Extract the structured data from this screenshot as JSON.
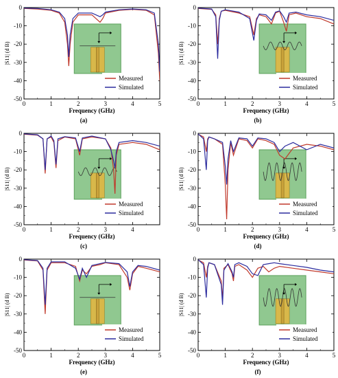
{
  "legend": {
    "measured": "Measured",
    "simulated": "Simulated"
  },
  "colors": {
    "measured": "#c0392b",
    "simulated": "#2b2b9e",
    "inset_bg": "#90c890",
    "inset_border": "#5aa05a",
    "patch": "#d8b84a",
    "feed": "#c9a23a"
  },
  "chart_data": [
    {
      "type": "line",
      "panel": "(a)",
      "xlabel": "Frequency (GHz)",
      "ylabel": "|S11| (d B)",
      "xlim": [
        0,
        5
      ],
      "ylim": [
        -50,
        0
      ],
      "xticks": [
        0,
        1,
        2,
        3,
        4,
        5
      ],
      "yticks": [
        0,
        -10,
        -20,
        -30,
        -40,
        -50
      ],
      "inset": "plain",
      "series": [
        {
          "name": "Measured",
          "x": [
            0,
            0.5,
            1.0,
            1.3,
            1.5,
            1.6,
            1.65,
            1.7,
            1.8,
            2.0,
            2.5,
            2.8,
            2.9,
            3.0,
            3.5,
            4.0,
            4.5,
            4.8,
            4.95,
            5.0
          ],
          "y": [
            -0.5,
            -0.8,
            -1.5,
            -3,
            -8,
            -20,
            -32,
            -20,
            -8,
            -4,
            -4,
            -8,
            -6,
            -3,
            -1.5,
            -1,
            -1.5,
            -4,
            -25,
            -40
          ]
        },
        {
          "name": "Simulated",
          "x": [
            0,
            0.5,
            1.0,
            1.3,
            1.5,
            1.6,
            1.65,
            1.7,
            1.8,
            2.0,
            2.5,
            2.8,
            2.9,
            3.0,
            3.5,
            4.0,
            4.5,
            4.8,
            4.95,
            5.0
          ],
          "y": [
            -0.3,
            -0.5,
            -1.2,
            -2.5,
            -6,
            -15,
            -27,
            -15,
            -6,
            -3,
            -3,
            -5,
            -4,
            -2.5,
            -1.2,
            -0.8,
            -1.2,
            -3,
            -20,
            -35
          ]
        }
      ]
    },
    {
      "type": "line",
      "panel": "(b)",
      "xlabel": "Frequency (GHz)",
      "ylabel": "|S11| (d B)",
      "xlim": [
        0,
        5
      ],
      "ylim": [
        -50,
        0
      ],
      "xticks": [
        0,
        1,
        2,
        3,
        4,
        5
      ],
      "yticks": [
        0,
        -10,
        -20,
        -30,
        -40,
        -50
      ],
      "inset": "meander",
      "series": [
        {
          "name": "Measured",
          "x": [
            0,
            0.5,
            0.65,
            0.72,
            0.78,
            0.85,
            1.0,
            1.5,
            1.9,
            2.05,
            2.15,
            2.25,
            2.5,
            2.7,
            2.85,
            3.0,
            3.15,
            3.25,
            3.35,
            3.6,
            4.0,
            4.5,
            5.0
          ],
          "y": [
            -0.5,
            -1,
            -4,
            -20,
            -6,
            -2,
            -1.5,
            -3,
            -5,
            -15,
            -6,
            -4,
            -5,
            -9,
            -3,
            -2,
            -8,
            -13,
            -4,
            -3,
            -5,
            -6,
            -9
          ]
        },
        {
          "name": "Simulated",
          "x": [
            0,
            0.5,
            0.65,
            0.72,
            0.78,
            0.85,
            1.0,
            1.5,
            1.9,
            2.05,
            2.15,
            2.25,
            2.5,
            2.7,
            2.85,
            3.0,
            3.15,
            3.25,
            3.35,
            3.6,
            4.0,
            4.5,
            5.0
          ],
          "y": [
            -0.3,
            -0.8,
            -5,
            -28,
            -7,
            -2,
            -1.2,
            -2.5,
            -6,
            -18,
            -7,
            -3.5,
            -4,
            -7,
            -2.5,
            -1.8,
            -5,
            -8,
            -3,
            -2.5,
            -4,
            -5,
            -7
          ]
        }
      ]
    },
    {
      "type": "line",
      "panel": "(c)",
      "xlabel": "Frequency (GHz)",
      "ylabel": "|S11| (d B)",
      "xlim": [
        0,
        5
      ],
      "ylim": [
        -50,
        0
      ],
      "xticks": [
        0,
        1,
        2,
        3,
        4
      ],
      "yticks": [
        0,
        -10,
        -20,
        -30,
        -40,
        -50
      ],
      "inset": "meander",
      "series": [
        {
          "name": "Measured",
          "x": [
            0,
            0.5,
            0.7,
            0.78,
            0.85,
            1.0,
            1.1,
            1.18,
            1.25,
            1.5,
            1.9,
            2.05,
            2.15,
            2.5,
            3.0,
            3.2,
            3.3,
            3.35,
            3.4,
            3.5,
            4.0,
            4.5,
            5.0
          ],
          "y": [
            -0.5,
            -1,
            -3,
            -22,
            -3,
            -2,
            -5,
            -19,
            -4,
            -2,
            -3,
            -12,
            -3,
            -2,
            -3,
            -8,
            -20,
            -33,
            -12,
            -6,
            -5,
            -6,
            -9
          ]
        },
        {
          "name": "Simulated",
          "x": [
            0,
            0.5,
            0.7,
            0.78,
            0.85,
            1.0,
            1.1,
            1.18,
            1.25,
            1.5,
            1.9,
            2.05,
            2.15,
            2.5,
            3.0,
            3.2,
            3.3,
            3.35,
            3.4,
            3.5,
            4.0,
            4.5,
            5.0
          ],
          "y": [
            -0.3,
            -0.8,
            -3,
            -20,
            -3,
            -1.5,
            -4,
            -17,
            -3,
            -1.8,
            -2.5,
            -10,
            -2.5,
            -1.5,
            -3,
            -9,
            -15,
            -19,
            -10,
            -5,
            -4,
            -5,
            -7
          ]
        }
      ]
    },
    {
      "type": "line",
      "panel": "(d)",
      "xlabel": "Frequency (GHz)",
      "ylabel": "|S11| (d B)",
      "xlim": [
        0,
        5
      ],
      "ylim": [
        -50,
        0
      ],
      "xticks": [
        0,
        1,
        2,
        3,
        4,
        5
      ],
      "yticks": [
        0,
        -10,
        -20,
        -30,
        -40,
        -50
      ],
      "inset": "wave",
      "series": [
        {
          "name": "Measured",
          "x": [
            0,
            0.2,
            0.3,
            0.35,
            0.4,
            0.6,
            0.9,
            1.0,
            1.05,
            1.1,
            1.2,
            1.3,
            1.5,
            1.8,
            2.0,
            2.2,
            2.5,
            2.8,
            3.0,
            3.2,
            3.5,
            4.0,
            4.5,
            5.0
          ],
          "y": [
            -0.5,
            -2,
            -10,
            -3,
            -2,
            -3,
            -6,
            -28,
            -47,
            -20,
            -5,
            -12,
            -3,
            -4,
            -8,
            -3,
            -4,
            -6,
            -12,
            -14,
            -8,
            -6,
            -7,
            -9
          ]
        },
        {
          "name": "Simulated",
          "x": [
            0,
            0.2,
            0.3,
            0.35,
            0.4,
            0.6,
            0.9,
            1.0,
            1.05,
            1.1,
            1.2,
            1.3,
            1.5,
            1.8,
            2.0,
            2.2,
            2.5,
            2.8,
            3.0,
            3.2,
            3.5,
            4.0,
            4.5,
            5.0
          ],
          "y": [
            -0.3,
            -3,
            -20,
            -4,
            -2,
            -3,
            -5,
            -18,
            -28,
            -14,
            -4,
            -10,
            -2.5,
            -3,
            -7,
            -2.5,
            -3,
            -5,
            -10,
            -7,
            -5,
            -9,
            -6,
            -8
          ]
        }
      ]
    },
    {
      "type": "line",
      "panel": "(e)",
      "xlabel": "Frequency (GHz)",
      "ylabel": "|S11| (d B)",
      "xlim": [
        0,
        5
      ],
      "ylim": [
        -50,
        0
      ],
      "xticks": [
        0,
        1,
        2,
        3,
        4,
        5
      ],
      "yticks": [
        0,
        -10,
        -20,
        -30,
        -40,
        -50
      ],
      "inset": "plain",
      "series": [
        {
          "name": "Measured",
          "x": [
            0,
            0.5,
            0.7,
            0.78,
            0.85,
            1.0,
            1.5,
            1.9,
            2.05,
            2.15,
            2.3,
            2.5,
            2.8,
            3.0,
            3.5,
            3.8,
            3.9,
            4.0,
            4.2,
            4.5,
            5.0
          ],
          "y": [
            -0.5,
            -1,
            -6,
            -30,
            -6,
            -2,
            -2,
            -4,
            -12,
            -6,
            -8,
            -4,
            -3,
            -2,
            -3,
            -10,
            -17,
            -8,
            -4,
            -5,
            -7
          ]
        },
        {
          "name": "Simulated",
          "x": [
            0,
            0.5,
            0.7,
            0.78,
            0.85,
            1.0,
            1.5,
            1.9,
            2.05,
            2.15,
            2.3,
            2.5,
            2.8,
            3.0,
            3.5,
            3.8,
            3.9,
            4.0,
            4.2,
            4.5,
            5.0
          ],
          "y": [
            -0.3,
            -0.8,
            -5,
            -25,
            -5,
            -1.5,
            -1.5,
            -5,
            -11,
            -5,
            -10,
            -3.5,
            -2.5,
            -1.8,
            -2.5,
            -7,
            -15,
            -7,
            -3.5,
            -4,
            -6
          ]
        }
      ]
    },
    {
      "type": "line",
      "panel": "(f)",
      "xlabel": "Frequency (GHz)",
      "ylabel": "|S11| (d B)",
      "xlim": [
        0,
        5
      ],
      "ylim": [
        -50,
        0
      ],
      "xticks": [
        0,
        1,
        2,
        3,
        4,
        5
      ],
      "yticks": [
        0,
        -10,
        -20,
        -30,
        -40,
        -50
      ],
      "inset": "wave",
      "series": [
        {
          "name": "Measured",
          "x": [
            0,
            0.2,
            0.3,
            0.35,
            0.4,
            0.6,
            0.85,
            0.9,
            0.95,
            1.1,
            1.25,
            1.3,
            1.35,
            1.5,
            1.8,
            2.0,
            2.2,
            2.4,
            2.6,
            2.8,
            3.0,
            3.5,
            4.0,
            4.5,
            5.0
          ],
          "y": [
            -0.5,
            -2,
            -10,
            -4,
            -2,
            -3,
            -12,
            -22,
            -5,
            -3,
            -8,
            -12,
            -4,
            -3,
            -6,
            -10,
            -5,
            -4,
            -7,
            -5,
            -4,
            -5,
            -6,
            -7,
            -8
          ]
        },
        {
          "name": "Simulated",
          "x": [
            0,
            0.2,
            0.3,
            0.35,
            0.4,
            0.6,
            0.85,
            0.9,
            0.95,
            1.1,
            1.25,
            1.3,
            1.35,
            1.5,
            1.8,
            2.0,
            2.2,
            2.4,
            2.6,
            2.8,
            3.0,
            3.5,
            4.0,
            4.5,
            5.0
          ],
          "y": [
            -0.3,
            -3,
            -21,
            -5,
            -2,
            -3,
            -14,
            -25,
            -6,
            -2.5,
            -7,
            -10,
            -3,
            -2,
            -4,
            -8,
            -9,
            -3,
            -2.5,
            -2,
            -2.5,
            -3.5,
            -4.5,
            -6,
            -7
          ]
        }
      ]
    }
  ]
}
